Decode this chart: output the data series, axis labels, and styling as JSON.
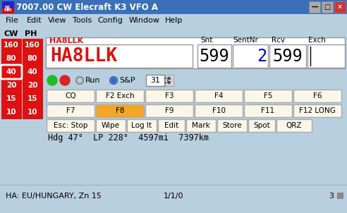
{
  "title": "7007.00 CW Elecraft K3 VFO A",
  "bg_color": "#b8cfe0",
  "menu_items": [
    "File",
    "Edit",
    "View",
    "Tools",
    "Config",
    "Window",
    "Help"
  ],
  "cw_label": "CW",
  "ph_label": "PH",
  "callsign_small": "HA8LLK",
  "callsign_large": "HA8LLK",
  "field_labels": [
    "Snt",
    "SentNr",
    "Rcv",
    "Exch"
  ],
  "snt_value": "599",
  "sentnr_value": "2",
  "rcv_value": "599",
  "run_label": "Run",
  "sp_label": "S&P",
  "sp_number": "31",
  "fn_buttons_row1": [
    "CQ",
    "F2 Exch",
    "F3",
    "F4",
    "F5",
    "F6"
  ],
  "fn_buttons_row2": [
    "F7",
    "F8",
    "F9",
    "F10",
    "F11",
    "F12 LONG"
  ],
  "fn_buttons_row3": [
    "Esc: Stop",
    "Wipe",
    "Log It",
    "Edit",
    "Mark",
    "Store",
    "Spot",
    "QRZ"
  ],
  "hdg_text": "Hdg 47°  LP 228°  4597mi  7397km",
  "status_left": "HA: EU/HUNGARY, Zn 15",
  "status_mid": "1/1/0",
  "status_right": "3",
  "red_col_color": "#dd1111",
  "f8_color": "#f5a623",
  "button_bg": "#faf6e8",
  "titlebar_color": "#3a6fba",
  "bands": [
    "160",
    "80",
    "40",
    "20",
    "15",
    "10"
  ]
}
